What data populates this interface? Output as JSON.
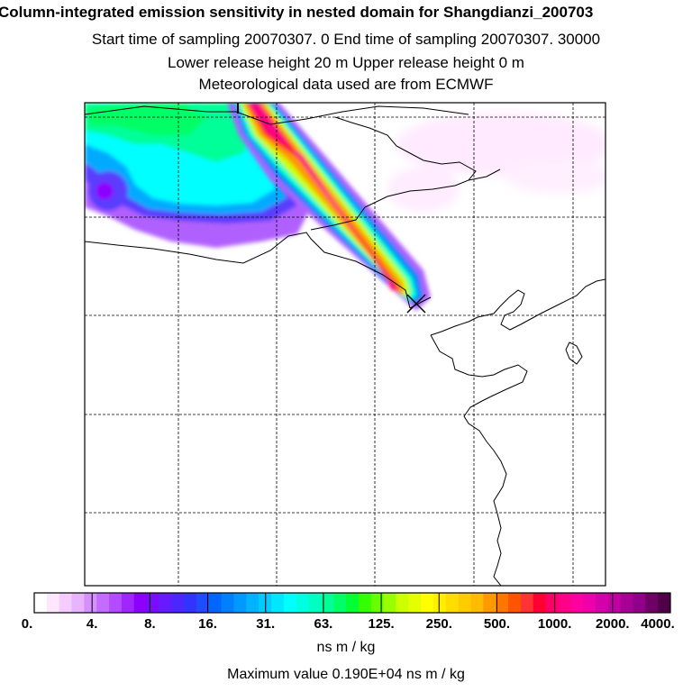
{
  "chart_data": {
    "type": "heatmap",
    "title": "Column-integrated emission sensitivity in nested domain for Shangdianzi_200703",
    "subtitle_lines": [
      "Start time of sampling 20070307.     0      End time of sampling 20070307. 30000",
      "Lower release height   20 m            Upper release height    0 m",
      "Meteorological data used are from ECMWF"
    ],
    "colorbar": {
      "tick_labels": [
        "0.",
        "4.",
        "8.",
        "16.",
        "31.",
        "63.",
        "125.",
        "250.",
        "500.",
        "1000.",
        "2000.",
        "4000."
      ],
      "unit": "ns m / kg",
      "colors": [
        "#ffffff",
        "#ffe6ff",
        "#f5ccff",
        "#e8b3ff",
        "#d68fff",
        "#c46cff",
        "#b34cff",
        "#a026ff",
        "#8c00ff",
        "#7a0dff",
        "#661aff",
        "#4d26ff",
        "#3333ff",
        "#1f4cff",
        "#0066ff",
        "#0080ff",
        "#0099ff",
        "#00b3ff",
        "#00ccff",
        "#00e6ff",
        "#00ffff",
        "#00ffe0",
        "#00ffc0",
        "#00ff99",
        "#00ff66",
        "#00ff33",
        "#33ff00",
        "#66ff00",
        "#99ff00",
        "#ccff00",
        "#e6ff00",
        "#ffff00",
        "#ffee00",
        "#ffdd00",
        "#ffcc00",
        "#ffbb00",
        "#ff9900",
        "#ff7700",
        "#ff5500",
        "#ff3333",
        "#ff0033",
        "#ff0066",
        "#ff0088",
        "#ff00a0",
        "#ee00aa",
        "#d600aa",
        "#c000a0",
        "#a80094",
        "#900088",
        "#6e0066",
        "#500048"
      ]
    },
    "max_value_text": "Maximum value  0.190E+04 ns m / kg",
    "receptor_marker": "X"
  }
}
